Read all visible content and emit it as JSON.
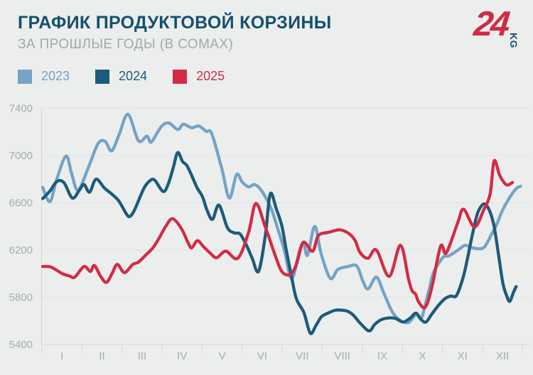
{
  "header": {
    "title": "ГРАФИК ПРОДУКТОВОЙ КОРЗИНЫ",
    "subtitle": "ЗА ПРОШЛЫЕ ГОДЫ (В СОМАХ)"
  },
  "logo": {
    "number": "24",
    "suffix": "KG",
    "number_color": "#d22b45",
    "suffix_color": "#14506e"
  },
  "colors": {
    "background": "#eceeed",
    "title": "#14506e",
    "subtitle": "#a3a8ab",
    "gridline": "#e0e4e3",
    "axis_line": "#d2d6d5",
    "tick_text": "#a6abad"
  },
  "chart_data": {
    "type": "line",
    "title": "ГРАФИК ПРОДУКТОВОЙ КОРЗИНЫ",
    "subtitle": "ЗА ПРОШЛЫЕ ГОДЫ (В СОМАХ)",
    "unit": "сом",
    "x_labels": [
      "I",
      "II",
      "III",
      "IV",
      "V",
      "VI",
      "VII",
      "VIII",
      "IX",
      "X",
      "XI",
      "XII"
    ],
    "x_axis_note": "months of the year; x values below are in months (0 = start of January, 11.5 = mid-December)",
    "xlim": [
      0,
      12.2
    ],
    "ylim": [
      5400,
      7400
    ],
    "y_ticks": [
      5400,
      5800,
      6200,
      6600,
      7000,
      7400
    ],
    "grid": "horizontal",
    "legend_position": "top-left",
    "series": [
      {
        "name": "2023",
        "color": "#74a3c6",
        "points": [
          [
            0.02,
            6730
          ],
          [
            0.2,
            6610
          ],
          [
            0.37,
            6800
          ],
          [
            0.6,
            6995
          ],
          [
            0.74,
            6850
          ],
          [
            0.9,
            6705
          ],
          [
            1.15,
            6890
          ],
          [
            1.4,
            7100
          ],
          [
            1.58,
            7120
          ],
          [
            1.74,
            7040
          ],
          [
            1.93,
            7180
          ],
          [
            2.15,
            7350
          ],
          [
            2.41,
            7125
          ],
          [
            2.62,
            7165
          ],
          [
            2.73,
            7115
          ],
          [
            2.98,
            7245
          ],
          [
            3.17,
            7275
          ],
          [
            3.39,
            7220
          ],
          [
            3.53,
            7265
          ],
          [
            3.74,
            7235
          ],
          [
            3.92,
            7250
          ],
          [
            4.1,
            7205
          ],
          [
            4.24,
            7185
          ],
          [
            4.49,
            6890
          ],
          [
            4.68,
            6640
          ],
          [
            4.86,
            6840
          ],
          [
            5.0,
            6775
          ],
          [
            5.16,
            6735
          ],
          [
            5.3,
            6755
          ],
          [
            5.43,
            6725
          ],
          [
            5.57,
            6655
          ],
          [
            5.73,
            6545
          ],
          [
            5.87,
            6400
          ],
          [
            6.05,
            6200
          ],
          [
            6.22,
            5960
          ],
          [
            6.37,
            6090
          ],
          [
            6.52,
            6265
          ],
          [
            6.63,
            6155
          ],
          [
            6.81,
            6400
          ],
          [
            6.97,
            6170
          ],
          [
            7.2,
            5960
          ],
          [
            7.39,
            6035
          ],
          [
            7.64,
            6060
          ],
          [
            7.86,
            6065
          ],
          [
            8.01,
            5940
          ],
          [
            8.14,
            5870
          ],
          [
            8.35,
            5970
          ],
          [
            8.53,
            5840
          ],
          [
            8.74,
            5680
          ],
          [
            8.92,
            5610
          ],
          [
            9.15,
            5585
          ],
          [
            9.34,
            5655
          ],
          [
            9.47,
            5620
          ],
          [
            9.58,
            5750
          ],
          [
            9.68,
            5885
          ],
          [
            9.79,
            6020
          ],
          [
            10.02,
            6140
          ],
          [
            10.16,
            6150
          ],
          [
            10.39,
            6200
          ],
          [
            10.57,
            6240
          ],
          [
            10.74,
            6220
          ],
          [
            10.92,
            6210
          ],
          [
            11.06,
            6230
          ],
          [
            11.22,
            6330
          ],
          [
            11.36,
            6420
          ],
          [
            11.49,
            6530
          ],
          [
            11.67,
            6640
          ],
          [
            11.84,
            6720
          ],
          [
            11.95,
            6740
          ]
        ]
      },
      {
        "name": "2024",
        "color": "#1c5b7b",
        "points": [
          [
            0.02,
            6635
          ],
          [
            0.2,
            6700
          ],
          [
            0.37,
            6780
          ],
          [
            0.55,
            6770
          ],
          [
            0.76,
            6640
          ],
          [
            0.94,
            6710
          ],
          [
            1.05,
            6755
          ],
          [
            1.19,
            6690
          ],
          [
            1.35,
            6800
          ],
          [
            1.56,
            6725
          ],
          [
            1.74,
            6675
          ],
          [
            1.92,
            6615
          ],
          [
            2.11,
            6505
          ],
          [
            2.2,
            6485
          ],
          [
            2.32,
            6545
          ],
          [
            2.55,
            6725
          ],
          [
            2.71,
            6790
          ],
          [
            2.82,
            6790
          ],
          [
            3.03,
            6695
          ],
          [
            3.16,
            6765
          ],
          [
            3.28,
            6900
          ],
          [
            3.39,
            7025
          ],
          [
            3.51,
            6950
          ],
          [
            3.62,
            6915
          ],
          [
            3.74,
            6830
          ],
          [
            3.87,
            6730
          ],
          [
            4.01,
            6650
          ],
          [
            4.13,
            6530
          ],
          [
            4.26,
            6460
          ],
          [
            4.42,
            6580
          ],
          [
            4.63,
            6390
          ],
          [
            4.8,
            6345
          ],
          [
            4.95,
            6335
          ],
          [
            5.12,
            6230
          ],
          [
            5.25,
            6130
          ],
          [
            5.41,
            6020
          ],
          [
            5.58,
            6330
          ],
          [
            5.7,
            6675
          ],
          [
            5.85,
            6550
          ],
          [
            5.99,
            6405
          ],
          [
            6.1,
            6200
          ],
          [
            6.22,
            5995
          ],
          [
            6.35,
            5790
          ],
          [
            6.54,
            5670
          ],
          [
            6.7,
            5495
          ],
          [
            6.84,
            5560
          ],
          [
            6.98,
            5635
          ],
          [
            7.14,
            5665
          ],
          [
            7.32,
            5690
          ],
          [
            7.5,
            5690
          ],
          [
            7.64,
            5680
          ],
          [
            7.77,
            5650
          ],
          [
            7.96,
            5575
          ],
          [
            8.17,
            5515
          ],
          [
            8.31,
            5570
          ],
          [
            8.47,
            5610
          ],
          [
            8.67,
            5625
          ],
          [
            8.83,
            5620
          ],
          [
            9.02,
            5590
          ],
          [
            9.2,
            5625
          ],
          [
            9.34,
            5665
          ],
          [
            9.47,
            5610
          ],
          [
            9.59,
            5590
          ],
          [
            9.73,
            5655
          ],
          [
            9.91,
            5735
          ],
          [
            10.07,
            5790
          ],
          [
            10.21,
            5810
          ],
          [
            10.35,
            5815
          ],
          [
            10.51,
            5960
          ],
          [
            10.62,
            6120
          ],
          [
            10.74,
            6320
          ],
          [
            10.87,
            6505
          ],
          [
            10.99,
            6580
          ],
          [
            11.08,
            6585
          ],
          [
            11.19,
            6520
          ],
          [
            11.29,
            6400
          ],
          [
            11.4,
            6160
          ],
          [
            11.51,
            5915
          ],
          [
            11.6,
            5815
          ],
          [
            11.68,
            5765
          ],
          [
            11.77,
            5840
          ],
          [
            11.84,
            5890
          ]
        ]
      },
      {
        "name": "2025",
        "color": "#d22b45",
        "points": [
          [
            0.02,
            6060
          ],
          [
            0.23,
            6055
          ],
          [
            0.51,
            6000
          ],
          [
            0.69,
            5980
          ],
          [
            0.82,
            5970
          ],
          [
            1.05,
            6060
          ],
          [
            1.21,
            6018
          ],
          [
            1.31,
            6069
          ],
          [
            1.47,
            5975
          ],
          [
            1.61,
            5926
          ],
          [
            1.75,
            6000
          ],
          [
            1.88,
            6078
          ],
          [
            2.06,
            6009
          ],
          [
            2.27,
            6078
          ],
          [
            2.41,
            6097
          ],
          [
            2.59,
            6157
          ],
          [
            2.77,
            6218
          ],
          [
            2.94,
            6309
          ],
          [
            3.09,
            6400
          ],
          [
            3.26,
            6465
          ],
          [
            3.48,
            6383
          ],
          [
            3.65,
            6261
          ],
          [
            3.74,
            6218
          ],
          [
            3.88,
            6279
          ],
          [
            4.03,
            6230
          ],
          [
            4.18,
            6181
          ],
          [
            4.36,
            6135
          ],
          [
            4.59,
            6190
          ],
          [
            4.89,
            6130
          ],
          [
            5.16,
            6350
          ],
          [
            5.34,
            6594
          ],
          [
            5.57,
            6403
          ],
          [
            5.82,
            6158
          ],
          [
            5.99,
            6018
          ],
          [
            6.19,
            5990
          ],
          [
            6.33,
            6060
          ],
          [
            6.52,
            6263
          ],
          [
            6.76,
            6190
          ],
          [
            6.9,
            6322
          ],
          [
            7.16,
            6350
          ],
          [
            7.32,
            6365
          ],
          [
            7.46,
            6370
          ],
          [
            7.66,
            6340
          ],
          [
            7.82,
            6280
          ],
          [
            7.94,
            6180
          ],
          [
            8.14,
            6130
          ],
          [
            8.35,
            6200
          ],
          [
            8.67,
            5977
          ],
          [
            8.95,
            6240
          ],
          [
            9.15,
            5957
          ],
          [
            9.24,
            5856
          ],
          [
            9.33,
            5826
          ],
          [
            9.41,
            5758
          ],
          [
            9.57,
            5715
          ],
          [
            9.73,
            5877
          ],
          [
            9.95,
            6230
          ],
          [
            10.07,
            6170
          ],
          [
            10.18,
            6240
          ],
          [
            10.39,
            6440
          ],
          [
            10.53,
            6545
          ],
          [
            10.8,
            6395
          ],
          [
            11.03,
            6540
          ],
          [
            11.19,
            6675
          ],
          [
            11.29,
            6955
          ],
          [
            11.42,
            6840
          ],
          [
            11.54,
            6770
          ],
          [
            11.63,
            6750
          ],
          [
            11.75,
            6772
          ]
        ]
      }
    ]
  }
}
